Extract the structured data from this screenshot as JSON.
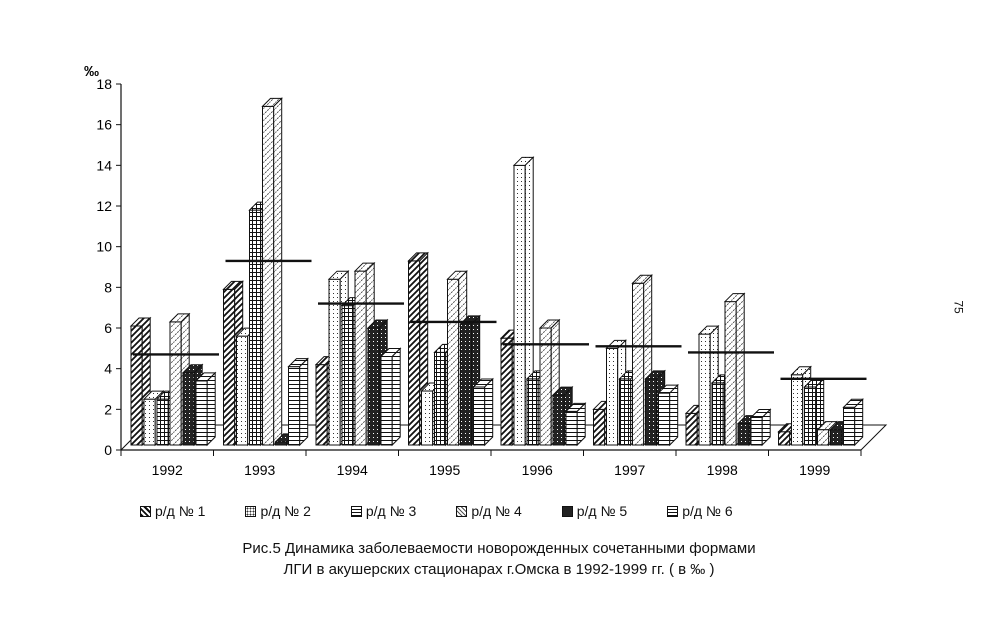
{
  "chart_data": {
    "type": "bar",
    "ylabel": "‰",
    "ylim": [
      0,
      18
    ],
    "yticks": [
      "0",
      "2",
      "4",
      "6",
      "8",
      "10",
      "12",
      "14",
      "16",
      "18"
    ],
    "categories": [
      "1992",
      "1993",
      "1994",
      "1995",
      "1996",
      "1997",
      "1998",
      "1999"
    ],
    "series": [
      {
        "name": "р/д № 1",
        "values": [
          6.1,
          7.9,
          4.2,
          9.3,
          5.5,
          2.0,
          1.8,
          0.9
        ]
      },
      {
        "name": "р/д № 2",
        "values": [
          2.5,
          5.6,
          8.4,
          2.9,
          14.0,
          5.0,
          5.7,
          3.7
        ]
      },
      {
        "name": "р/д № 3",
        "values": [
          2.5,
          11.8,
          7.1,
          4.8,
          3.5,
          3.5,
          3.3,
          3.1
        ]
      },
      {
        "name": "р/д № 4",
        "values": [
          6.3,
          16.9,
          8.8,
          8.4,
          6.0,
          8.2,
          7.3,
          1.0
        ]
      },
      {
        "name": "р/д № 5",
        "values": [
          3.8,
          0.4,
          6.0,
          6.2,
          2.7,
          3.5,
          1.3,
          1.0
        ]
      },
      {
        "name": "р/д № 6",
        "values": [
          3.4,
          4.1,
          4.6,
          3.1,
          1.9,
          2.8,
          1.6,
          2.1
        ]
      }
    ],
    "average_lines": [
      4.7,
      9.3,
      7.2,
      6.3,
      5.2,
      5.1,
      4.8,
      3.5
    ],
    "legend_position": "bottom",
    "grid": false
  },
  "caption": {
    "line1": "Рис.5  Динамика заболеваемости новорожденных сочетанными формами",
    "line2": "ЛГИ в акушерских стационарах г.Омска в 1992-1999 гг. ( в ‰ )"
  },
  "page_number": "75",
  "colors": {
    "ink": "#111111",
    "paper": "#ffffff",
    "dark_fill": "#222222"
  }
}
